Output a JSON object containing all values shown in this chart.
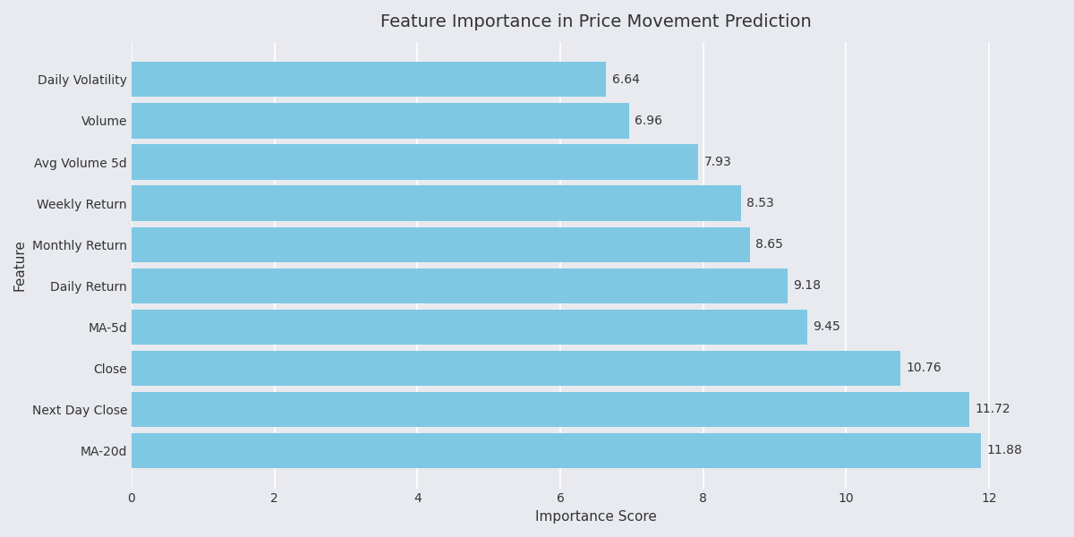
{
  "features": [
    "Daily Volatility",
    "Volume",
    "Avg Volume 5d",
    "Weekly Return",
    "Monthly Return",
    "Daily Return",
    "MA-5d",
    "Close",
    "Next Day Close",
    "MA-20d"
  ],
  "values": [
    6.64,
    6.96,
    7.93,
    8.53,
    8.65,
    9.18,
    9.45,
    10.76,
    11.72,
    11.88
  ],
  "bar_color": "#7EC8E3",
  "background_color": "#E8EAF0",
  "plot_bg_color": "#E8EAF0",
  "title": "Feature Importance in Price Movement Prediction",
  "xlabel": "Importance Score",
  "ylabel": "Feature",
  "xlim": [
    0,
    13
  ],
  "xticks": [
    0,
    2,
    4,
    6,
    8,
    10,
    12
  ],
  "title_fontsize": 14,
  "label_fontsize": 11,
  "tick_fontsize": 10,
  "value_fontsize": 10,
  "bar_height": 0.85,
  "grid_color": "#ffffff",
  "text_color": "#333333"
}
